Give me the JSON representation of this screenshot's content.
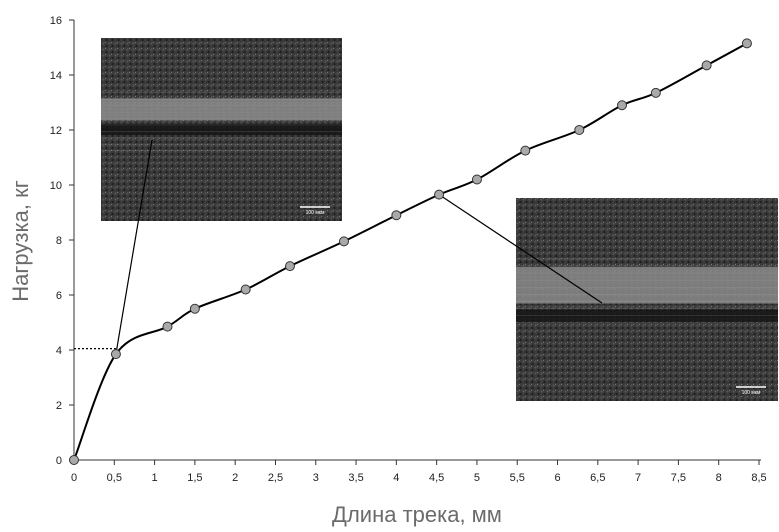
{
  "chart_data": {
    "type": "line",
    "xlabel": "Длина трека, мм",
    "ylabel": "Нагрузка, кг",
    "xlim": [
      0,
      8.5
    ],
    "ylim": [
      0,
      16
    ],
    "x_ticks": [
      "0",
      "0,5",
      "1",
      "1,5",
      "2",
      "2,5",
      "3",
      "3,5",
      "4",
      "4,5",
      "5",
      "5,5",
      "6",
      "6,5",
      "7",
      "7,5",
      "8",
      "8,5"
    ],
    "y_ticks": [
      "0",
      "2",
      "4",
      "6",
      "8",
      "10",
      "12",
      "14",
      "16"
    ],
    "grid": false,
    "series": [
      {
        "color": "#000000",
        "marker_color": "#a9a9a9",
        "points": [
          [
            0,
            0
          ],
          [
            0.52,
            3.85
          ],
          [
            1.16,
            4.85
          ],
          [
            1.5,
            5.5
          ],
          [
            2.13,
            6.2
          ],
          [
            2.68,
            7.05
          ],
          [
            3.35,
            7.95
          ],
          [
            4.0,
            8.9
          ],
          [
            4.53,
            9.65
          ],
          [
            5.0,
            10.2
          ],
          [
            5.6,
            11.25
          ],
          [
            6.27,
            12.0
          ],
          [
            6.8,
            12.9
          ],
          [
            7.22,
            13.35
          ],
          [
            7.85,
            14.35
          ],
          [
            8.35,
            15.15
          ]
        ]
      }
    ],
    "reference_line": {
      "style": "dotted",
      "y": 4.05,
      "x_to": 0.52
    },
    "insets": [
      {
        "name": "micrograph-upper-left",
        "scale_label": "100 мкм",
        "callout_point": [
          0.52,
          3.85
        ]
      },
      {
        "name": "micrograph-right",
        "scale_label": "100 мкм",
        "callout_point": [
          4.53,
          9.65
        ]
      }
    ]
  }
}
